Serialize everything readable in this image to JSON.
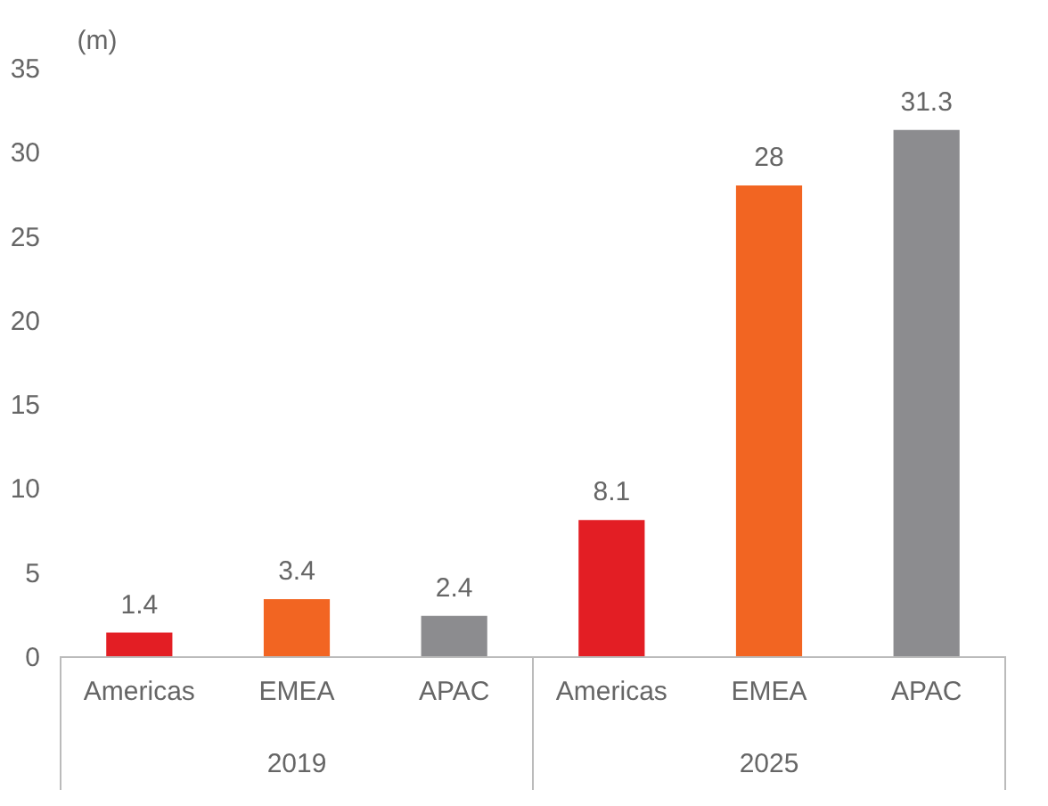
{
  "chart_data": {
    "type": "bar",
    "ylabel": "(m)",
    "categories": [
      "Americas",
      "EMEA",
      "APAC",
      "Americas",
      "EMEA",
      "APAC"
    ],
    "values": [
      1.4,
      3.4,
      2.4,
      8.1,
      28,
      31.3
    ],
    "colors": [
      "#e31e24",
      "#f26522",
      "#8c8c8f",
      "#e31e24",
      "#f26522",
      "#8c8c8f"
    ],
    "ylim": [
      0,
      35
    ],
    "yticks": [
      0,
      5,
      10,
      15,
      20,
      25,
      30,
      35
    ],
    "annotations": [
      "2019",
      "2025"
    ],
    "data_labels": true,
    "grid": false
  }
}
